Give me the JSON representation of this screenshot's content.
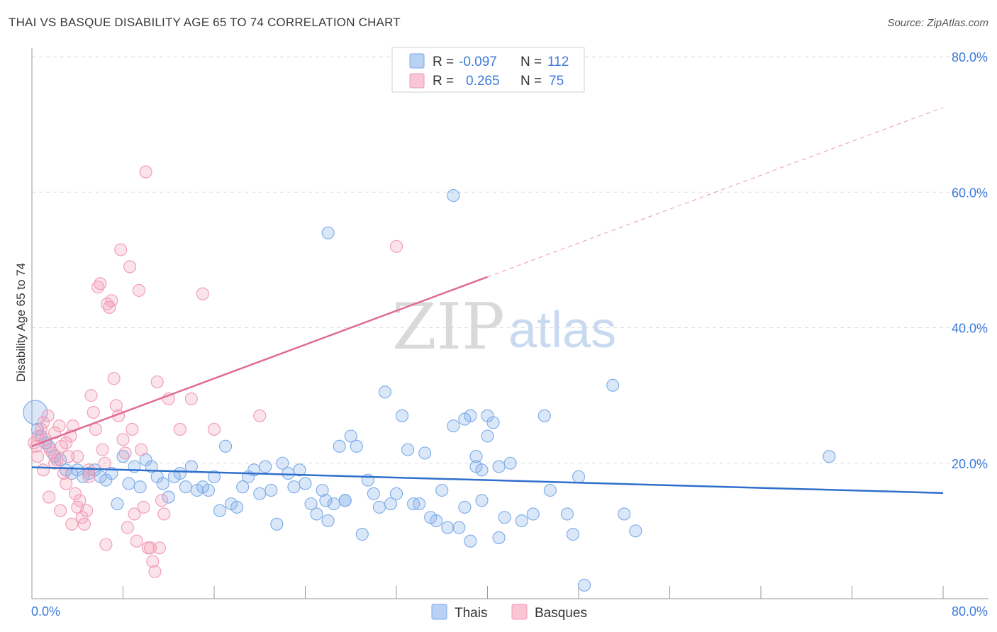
{
  "title": "THAI VS BASQUE DISABILITY AGE 65 TO 74 CORRELATION CHART",
  "source": "Source: ZipAtlas.com",
  "watermark": {
    "zip": "ZIP",
    "atlas": "atlas"
  },
  "colors": {
    "thai": "#7aaae8",
    "thai_line": "#2f6fcc",
    "basque": "#f29ab5",
    "basque_line": "#e06a93",
    "grid": "#dddddd",
    "tick": "#3d7bd9"
  },
  "legend": {
    "rows": [
      {
        "r_label": "R =",
        "r_value": "-0.097",
        "n_label": "N =",
        "n_value": "112"
      },
      {
        "r_label": "R =",
        "r_value": "0.265",
        "n_label": "N =",
        "n_value": "75"
      }
    ]
  },
  "bottom_legend": [
    "Thais",
    "Basques"
  ],
  "chart_data": {
    "type": "scatter",
    "title": "THAI VS BASQUE DISABILITY AGE 65 TO 74 CORRELATION CHART",
    "xlabel": "",
    "ylabel": "Disability Age 65 to 74",
    "xlim": [
      0,
      80
    ],
    "ylim": [
      0,
      80
    ],
    "x_tick_labels": [
      "0.0%",
      "80.0%"
    ],
    "y_ticks": [
      20,
      40,
      60,
      80
    ],
    "y_tick_labels": [
      "20.0%",
      "40.0%",
      "60.0%",
      "80.0%"
    ],
    "grid": true,
    "legend_position": "top-center",
    "series": [
      {
        "name": "Thais",
        "r": -0.097,
        "n": 112,
        "trend": {
          "x": [
            0,
            80
          ],
          "y": [
            19.4,
            15.6
          ],
          "dashed_from": null
        },
        "points": [
          [
            0.3,
            27.5
          ],
          [
            0.5,
            25
          ],
          [
            0.8,
            24
          ],
          [
            1.2,
            23
          ],
          [
            1.5,
            22.5
          ],
          [
            2,
            21
          ],
          [
            2.5,
            20.5
          ],
          [
            3,
            19
          ],
          [
            3.5,
            18.5
          ],
          [
            4,
            19
          ],
          [
            4.5,
            18
          ],
          [
            5,
            18.5
          ],
          [
            5.5,
            19
          ],
          [
            6,
            18
          ],
          [
            6.5,
            17.5
          ],
          [
            7,
            18.5
          ],
          [
            7.5,
            14
          ],
          [
            8,
            21
          ],
          [
            8.5,
            17
          ],
          [
            9,
            19.5
          ],
          [
            9.5,
            16.5
          ],
          [
            10,
            20.5
          ],
          [
            10.5,
            19.5
          ],
          [
            11,
            18
          ],
          [
            11.5,
            17
          ],
          [
            12,
            15
          ],
          [
            12.5,
            18
          ],
          [
            13,
            18.5
          ],
          [
            13.5,
            16.5
          ],
          [
            14,
            19.5
          ],
          [
            14.5,
            16
          ],
          [
            15,
            16.5
          ],
          [
            15.5,
            16
          ],
          [
            16,
            18
          ],
          [
            16.5,
            13
          ],
          [
            17,
            22.5
          ],
          [
            17.5,
            14
          ],
          [
            18,
            13.5
          ],
          [
            18.5,
            16.5
          ],
          [
            19,
            18
          ],
          [
            19.5,
            19
          ],
          [
            20,
            15.5
          ],
          [
            20.5,
            19.5
          ],
          [
            21,
            16
          ],
          [
            21.5,
            11
          ],
          [
            22,
            20
          ],
          [
            22.5,
            18.5
          ],
          [
            23,
            16.5
          ],
          [
            23.5,
            19
          ],
          [
            24,
            17
          ],
          [
            24.5,
            14
          ],
          [
            25,
            12.5
          ],
          [
            25.5,
            16
          ],
          [
            25.8,
            14.5
          ],
          [
            26,
            11.5
          ],
          [
            26.5,
            14
          ],
          [
            27,
            22.5
          ],
          [
            27.5,
            14.5
          ],
          [
            28,
            24
          ],
          [
            28.5,
            22.5
          ],
          [
            29,
            9.5
          ],
          [
            26,
            54
          ],
          [
            27.5,
            14.5
          ],
          [
            29.5,
            17.5
          ],
          [
            30,
            15.5
          ],
          [
            30.5,
            13.5
          ],
          [
            31,
            30.5
          ],
          [
            31.5,
            14
          ],
          [
            32,
            15.5
          ],
          [
            32.5,
            27
          ],
          [
            33,
            22
          ],
          [
            33.5,
            14
          ],
          [
            34,
            14
          ],
          [
            34.5,
            21.5
          ],
          [
            35,
            12
          ],
          [
            35.5,
            11.5
          ],
          [
            36,
            16
          ],
          [
            36.5,
            10.5
          ],
          [
            37,
            25.5
          ],
          [
            37.5,
            10.5
          ],
          [
            38,
            13.5
          ],
          [
            38.5,
            8.5
          ],
          [
            39,
            19.5
          ],
          [
            39.5,
            14.5
          ],
          [
            40,
            24
          ],
          [
            40.5,
            26
          ],
          [
            41,
            9
          ],
          [
            41.5,
            12
          ],
          [
            37,
            59.5
          ],
          [
            38,
            26.5
          ],
          [
            38.5,
            27
          ],
          [
            39,
            21
          ],
          [
            39.5,
            19
          ],
          [
            40,
            27
          ],
          [
            41,
            19.5
          ],
          [
            42,
            20
          ],
          [
            43,
            11.5
          ],
          [
            44,
            12.5
          ],
          [
            45,
            27
          ],
          [
            45.5,
            16
          ],
          [
            47,
            12.5
          ],
          [
            47.5,
            9.5
          ],
          [
            48,
            18
          ],
          [
            48.5,
            2
          ],
          [
            51,
            31.5
          ],
          [
            52,
            12.5
          ],
          [
            53,
            10
          ],
          [
            70,
            21
          ]
        ]
      },
      {
        "name": "Basques",
        "r": 0.265,
        "n": 75,
        "trend": {
          "x": [
            0,
            40
          ],
          "y": [
            22.5,
            47.5
          ],
          "dashed_from": 40,
          "dashed_to": [
            80,
            72.5
          ]
        },
        "points": [
          [
            0.2,
            23
          ],
          [
            0.4,
            22.5
          ],
          [
            0.6,
            24
          ],
          [
            0.8,
            25
          ],
          [
            1,
            26
          ],
          [
            1.2,
            23.5
          ],
          [
            1.4,
            27
          ],
          [
            1.6,
            22
          ],
          [
            1.8,
            21.5
          ],
          [
            2,
            24.5
          ],
          [
            2.2,
            20.5
          ],
          [
            2.4,
            25.5
          ],
          [
            2.6,
            22.5
          ],
          [
            2.8,
            18.5
          ],
          [
            3,
            17
          ],
          [
            3.2,
            21
          ],
          [
            3.4,
            24
          ],
          [
            3.6,
            25.5
          ],
          [
            3.8,
            15.5
          ],
          [
            4,
            13.5
          ],
          [
            4.2,
            14.5
          ],
          [
            4.4,
            12
          ],
          [
            4.6,
            11
          ],
          [
            4.8,
            13
          ],
          [
            5,
            19
          ],
          [
            5.2,
            30
          ],
          [
            5.4,
            27.5
          ],
          [
            5.6,
            25
          ],
          [
            5.8,
            46
          ],
          [
            6,
            46.5
          ],
          [
            6.2,
            22
          ],
          [
            6.4,
            20
          ],
          [
            6.6,
            43.5
          ],
          [
            6.8,
            43
          ],
          [
            7,
            44
          ],
          [
            7.2,
            32.5
          ],
          [
            7.4,
            28.5
          ],
          [
            7.6,
            27
          ],
          [
            7.8,
            51.5
          ],
          [
            8,
            23.5
          ],
          [
            8.2,
            21.5
          ],
          [
            8.4,
            10.5
          ],
          [
            8.6,
            49
          ],
          [
            8.8,
            25
          ],
          [
            9,
            12.5
          ],
          [
            9.2,
            8.5
          ],
          [
            9.4,
            45.5
          ],
          [
            9.6,
            22
          ],
          [
            9.8,
            13.5
          ],
          [
            10,
            63
          ],
          [
            10.2,
            7.5
          ],
          [
            10.4,
            7.5
          ],
          [
            10.6,
            5.5
          ],
          [
            10.8,
            4
          ],
          [
            11,
            32
          ],
          [
            11.2,
            7.5
          ],
          [
            11.4,
            14.5
          ],
          [
            11.6,
            12.5
          ],
          [
            12,
            29.5
          ],
          [
            13,
            25
          ],
          [
            14,
            29.5
          ],
          [
            15,
            45
          ],
          [
            16,
            25
          ],
          [
            20,
            27
          ],
          [
            32,
            52
          ],
          [
            1.5,
            15
          ],
          [
            2.5,
            13
          ],
          [
            3.5,
            11
          ],
          [
            6.5,
            8
          ],
          [
            1,
            19
          ],
          [
            0.5,
            21
          ],
          [
            2,
            20
          ],
          [
            3,
            23
          ],
          [
            4,
            21
          ],
          [
            5,
            18
          ]
        ]
      }
    ]
  }
}
